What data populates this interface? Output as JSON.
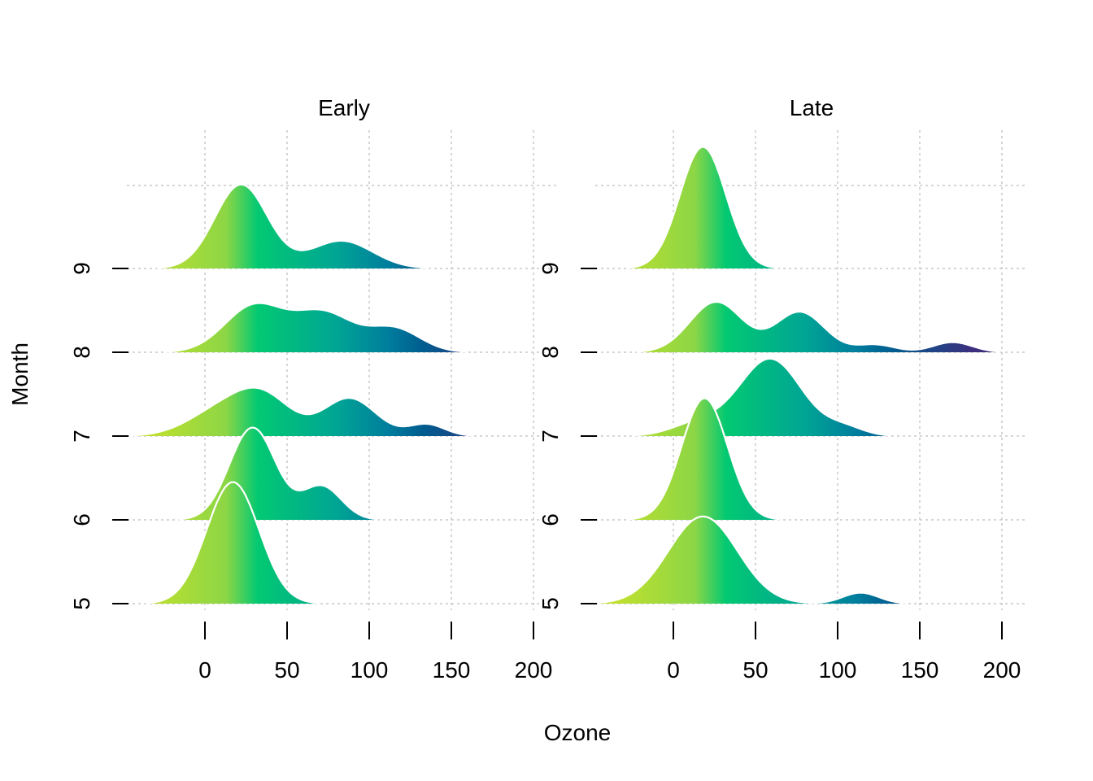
{
  "chart_data": {
    "type": "ridgeline",
    "xlabel": "Ozone",
    "ylabel": "Month",
    "x_ticks": [
      0,
      50,
      100,
      150,
      200
    ],
    "y_categories": [
      "5",
      "6",
      "7",
      "8",
      "9"
    ],
    "grid": true,
    "fill": "gradient along x (viridis-like)",
    "colors": {
      "gradient_stops": [
        "#c6e12c",
        "#8dd645",
        "#03c972",
        "#00a594",
        "#007e9d",
        "#005c8f",
        "#3d2e7d"
      ]
    },
    "panels": [
      {
        "title": "Early",
        "series": [
          {
            "month": "5",
            "peaks": [
              {
                "mu": 17,
                "sigma": 16,
                "h": 1.45
              }
            ]
          },
          {
            "month": "6",
            "peaks": [
              {
                "mu": 29,
                "sigma": 14,
                "h": 1.1
              },
              {
                "mu": 71,
                "sigma": 12,
                "h": 0.4
              }
            ]
          },
          {
            "month": "7",
            "peaks": [
              {
                "mu": 10,
                "sigma": 20,
                "h": 0.3
              },
              {
                "mu": 36,
                "sigma": 17,
                "h": 0.42
              },
              {
                "mu": 88,
                "sigma": 16,
                "h": 0.45
              },
              {
                "mu": 135,
                "sigma": 11,
                "h": 0.14
              }
            ]
          },
          {
            "month": "8",
            "peaks": [
              {
                "mu": 30,
                "sigma": 18,
                "h": 0.55
              },
              {
                "mu": 72,
                "sigma": 18,
                "h": 0.46
              },
              {
                "mu": 115,
                "sigma": 16,
                "h": 0.28
              }
            ]
          },
          {
            "month": "9",
            "peaks": [
              {
                "mu": 22,
                "sigma": 16,
                "h": 1.0
              },
              {
                "mu": 83,
                "sigma": 19,
                "h": 0.33
              }
            ]
          }
        ]
      },
      {
        "title": "Late",
        "series": [
          {
            "month": "5",
            "peaks": [
              {
                "mu": 18,
                "sigma": 21,
                "h": 1.04
              },
              {
                "mu": 114,
                "sigma": 11,
                "h": 0.13
              }
            ]
          },
          {
            "month": "6",
            "peaks": [
              {
                "mu": 19,
                "sigma": 14,
                "h": 1.45
              }
            ]
          },
          {
            "month": "7",
            "peaks": [
              {
                "mu": 15,
                "sigma": 16,
                "h": 0.15
              },
              {
                "mu": 59,
                "sigma": 19,
                "h": 0.92
              },
              {
                "mu": 104,
                "sigma": 12,
                "h": 0.1
              }
            ]
          },
          {
            "month": "8",
            "peaks": [
              {
                "mu": 26,
                "sigma": 16,
                "h": 0.6
              },
              {
                "mu": 77,
                "sigma": 15,
                "h": 0.48
              },
              {
                "mu": 123,
                "sigma": 12,
                "h": 0.09
              },
              {
                "mu": 170,
                "sigma": 12,
                "h": 0.12
              }
            ]
          },
          {
            "month": "9",
            "peaks": [
              {
                "mu": 18,
                "sigma": 14,
                "h": 1.45
              }
            ]
          }
        ]
      }
    ]
  }
}
